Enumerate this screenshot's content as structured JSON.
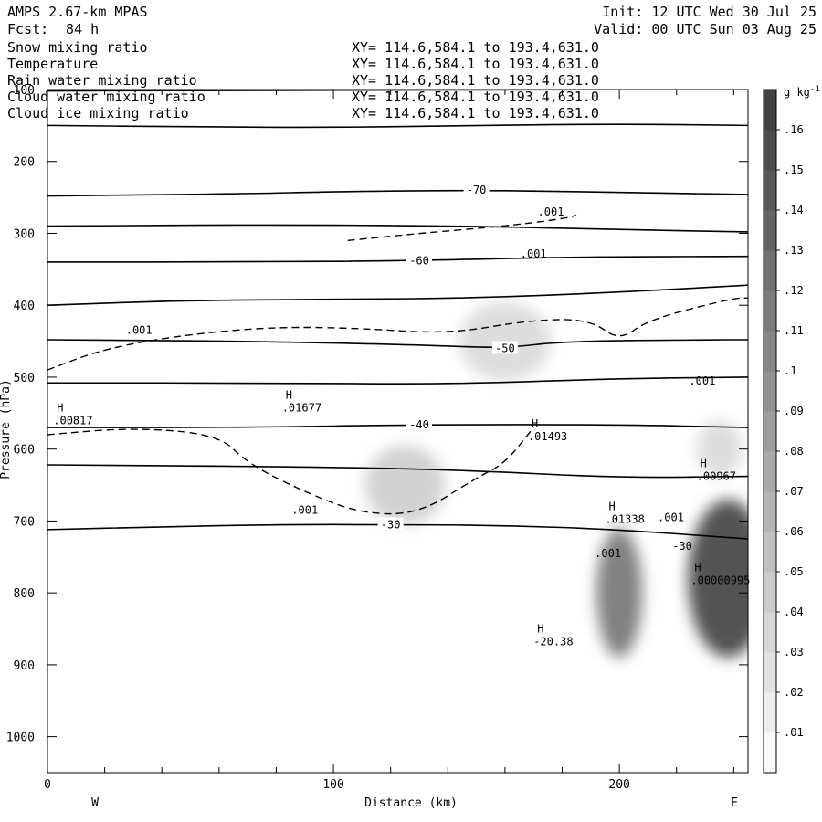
{
  "header": {
    "model": "AMPS 2.67-km MPAS",
    "forecast_label": "Fcst:",
    "forecast_value": "84 h",
    "init": "Init: 12 UTC Wed 30 Jul 25",
    "valid": "Valid: 00 UTC Sun 03 Aug 25"
  },
  "fields": [
    {
      "name": "Snow mixing ratio",
      "xy": "XY= 114.6,584.1 to 193.4,631.0",
      "color": "#000000"
    },
    {
      "name": "Temperature",
      "xy": "XY= 114.6,584.1 to 193.4,631.0",
      "color": "#000000"
    },
    {
      "name": "Rain water mixing ratio",
      "xy": "XY= 114.6,584.1 to 193.4,631.0",
      "color": "#e00000"
    },
    {
      "name": "Cloud water mixing ratio",
      "xy": "XY= 114.6,584.1 to 193.4,631.0",
      "color": "#0000cc"
    },
    {
      "name": "Cloud ice mixing ratio",
      "xy": "XY= 114.6,584.1 to 193.4,631.0",
      "color": "#000000"
    }
  ],
  "chart_data": {
    "type": "heatmap",
    "xlabel": "Distance (km)",
    "ylabel": "Pressure (hPa)",
    "xlim": [
      0,
      245
    ],
    "ylim": [
      1050,
      100
    ],
    "y_scale": "linear-inverted",
    "x_ticks": [
      0,
      100,
      200
    ],
    "y_ticks": [
      100,
      200,
      300,
      400,
      500,
      600,
      700,
      800,
      900,
      1000
    ],
    "x_end_labels": {
      "left": "W",
      "right": "E"
    },
    "colorbar": {
      "unit": "g kg",
      "unit_superscript": "-1",
      "levels": [
        ".01",
        ".02",
        ".03",
        ".04",
        ".05",
        ".06",
        ".07",
        ".08",
        ".09",
        ".1",
        ".11",
        ".12",
        ".13",
        ".14",
        ".15",
        ".16"
      ],
      "min": 0,
      "max": 0.17
    },
    "shaded_blobs": [
      {
        "x": 160,
        "p": 450,
        "rx": 16,
        "ry": 55,
        "value": 0.03
      },
      {
        "x": 125,
        "p": 650,
        "rx": 14,
        "ry": 55,
        "value": 0.04
      },
      {
        "x": 200,
        "p": 800,
        "rx": 8,
        "ry": 90,
        "value": 0.11
      },
      {
        "x": 238,
        "p": 780,
        "rx": 14,
        "ry": 110,
        "value": 0.15
      },
      {
        "x": 235,
        "p": 600,
        "rx": 8,
        "ry": 40,
        "value": 0.03
      }
    ],
    "temperature_isotherms": [
      {
        "points": [
          [
            0,
            102
          ],
          [
            100,
            101
          ],
          [
            200,
            100
          ],
          [
            245,
            100
          ]
        ]
      },
      {
        "points": [
          [
            0,
            150
          ],
          [
            50,
            152
          ],
          [
            100,
            153
          ],
          [
            150,
            150
          ],
          [
            200,
            148
          ],
          [
            245,
            150
          ]
        ]
      },
      {
        "label": "-70",
        "points": [
          [
            0,
            248
          ],
          [
            70,
            245
          ],
          [
            100,
            242
          ],
          [
            150,
            240
          ],
          [
            200,
            243
          ],
          [
            245,
            246
          ]
        ]
      },
      {
        "points": [
          [
            0,
            290
          ],
          [
            80,
            288
          ],
          [
            150,
            290
          ],
          [
            200,
            295
          ],
          [
            245,
            298
          ]
        ]
      },
      {
        "label": "-60",
        "points": [
          [
            0,
            340
          ],
          [
            70,
            340
          ],
          [
            130,
            338
          ],
          [
            180,
            333
          ],
          [
            245,
            332
          ]
        ]
      },
      {
        "points": [
          [
            0,
            400
          ],
          [
            50,
            393
          ],
          [
            100,
            392
          ],
          [
            150,
            390
          ],
          [
            200,
            382
          ],
          [
            245,
            372
          ]
        ]
      },
      {
        "label": "-50",
        "points": [
          [
            0,
            448
          ],
          [
            70,
            450
          ],
          [
            130,
            455
          ],
          [
            160,
            460
          ],
          [
            180,
            450
          ],
          [
            230,
            448
          ],
          [
            245,
            448
          ]
        ]
      },
      {
        "points": [
          [
            0,
            508
          ],
          [
            80,
            508
          ],
          [
            140,
            510
          ],
          [
            200,
            502
          ],
          [
            245,
            500
          ]
        ]
      },
      {
        "label": "-40",
        "points": [
          [
            0,
            570
          ],
          [
            70,
            570
          ],
          [
            130,
            566
          ],
          [
            200,
            566
          ],
          [
            245,
            570
          ]
        ]
      },
      {
        "points": [
          [
            0,
            622
          ],
          [
            100,
            625
          ],
          [
            150,
            630
          ],
          [
            200,
            640
          ],
          [
            245,
            638
          ]
        ]
      },
      {
        "label": "-30",
        "points": [
          [
            0,
            712
          ],
          [
            40,
            708
          ],
          [
            80,
            705
          ],
          [
            120,
            705
          ],
          [
            160,
            706
          ],
          [
            200,
            712
          ],
          [
            245,
            725
          ]
        ]
      }
    ],
    "ice_contour_dashed": [
      {
        "label": ".001",
        "points": [
          [
            0,
            490
          ],
          [
            20,
            460
          ],
          [
            50,
            440
          ],
          [
            80,
            430
          ],
          [
            110,
            432
          ],
          [
            140,
            440
          ],
          [
            170,
            420
          ],
          [
            190,
            420
          ],
          [
            200,
            450
          ],
          [
            210,
            420
          ],
          [
            240,
            390
          ],
          [
            245,
            390
          ]
        ]
      },
      {
        "label": ".001",
        "points": [
          [
            105,
            310
          ],
          [
            130,
            300
          ],
          [
            160,
            290
          ],
          [
            180,
            280
          ],
          [
            185,
            275
          ]
        ]
      },
      {
        "points": [
          [
            0,
            580
          ],
          [
            30,
            570
          ],
          [
            60,
            580
          ],
          [
            70,
            620
          ],
          [
            90,
            660
          ],
          [
            110,
            690
          ],
          [
            130,
            690
          ],
          [
            150,
            640
          ],
          [
            160,
            620
          ],
          [
            170,
            570
          ]
        ]
      }
    ],
    "annotations": [
      {
        "label": "H",
        "value": ".00817",
        "x": 2,
        "p": 548
      },
      {
        "label": "H",
        "value": ".01677",
        "x": 82,
        "p": 530
      },
      {
        "label": "H",
        "value": ".01493",
        "x": 168,
        "p": 570
      },
      {
        "label": "H",
        "value": ".00967",
        "x": 227,
        "p": 625
      },
      {
        "label": "H",
        "value": ".01338",
        "x": 195,
        "p": 685
      },
      {
        "label": "H",
        "value": ".00000995",
        "x": 225,
        "p": 770,
        "color": "#0000cc"
      },
      {
        "label": "H",
        "value": "-20.38",
        "x": 170,
        "p": 855
      }
    ],
    "contour_labels": [
      {
        "text": ".001",
        "x": 32,
        "p": 440
      },
      {
        "text": ".001",
        "x": 176,
        "p": 275
      },
      {
        "text": ".001",
        "x": 170,
        "p": 334
      },
      {
        "text": ".001",
        "x": 229,
        "p": 510
      },
      {
        "text": ".001",
        "x": 90,
        "p": 690
      },
      {
        "text": ".001",
        "x": 196,
        "p": 750
      },
      {
        "text": ".001",
        "x": 218,
        "p": 700
      },
      {
        "text": "-30",
        "x": 222,
        "p": 740
      }
    ]
  }
}
